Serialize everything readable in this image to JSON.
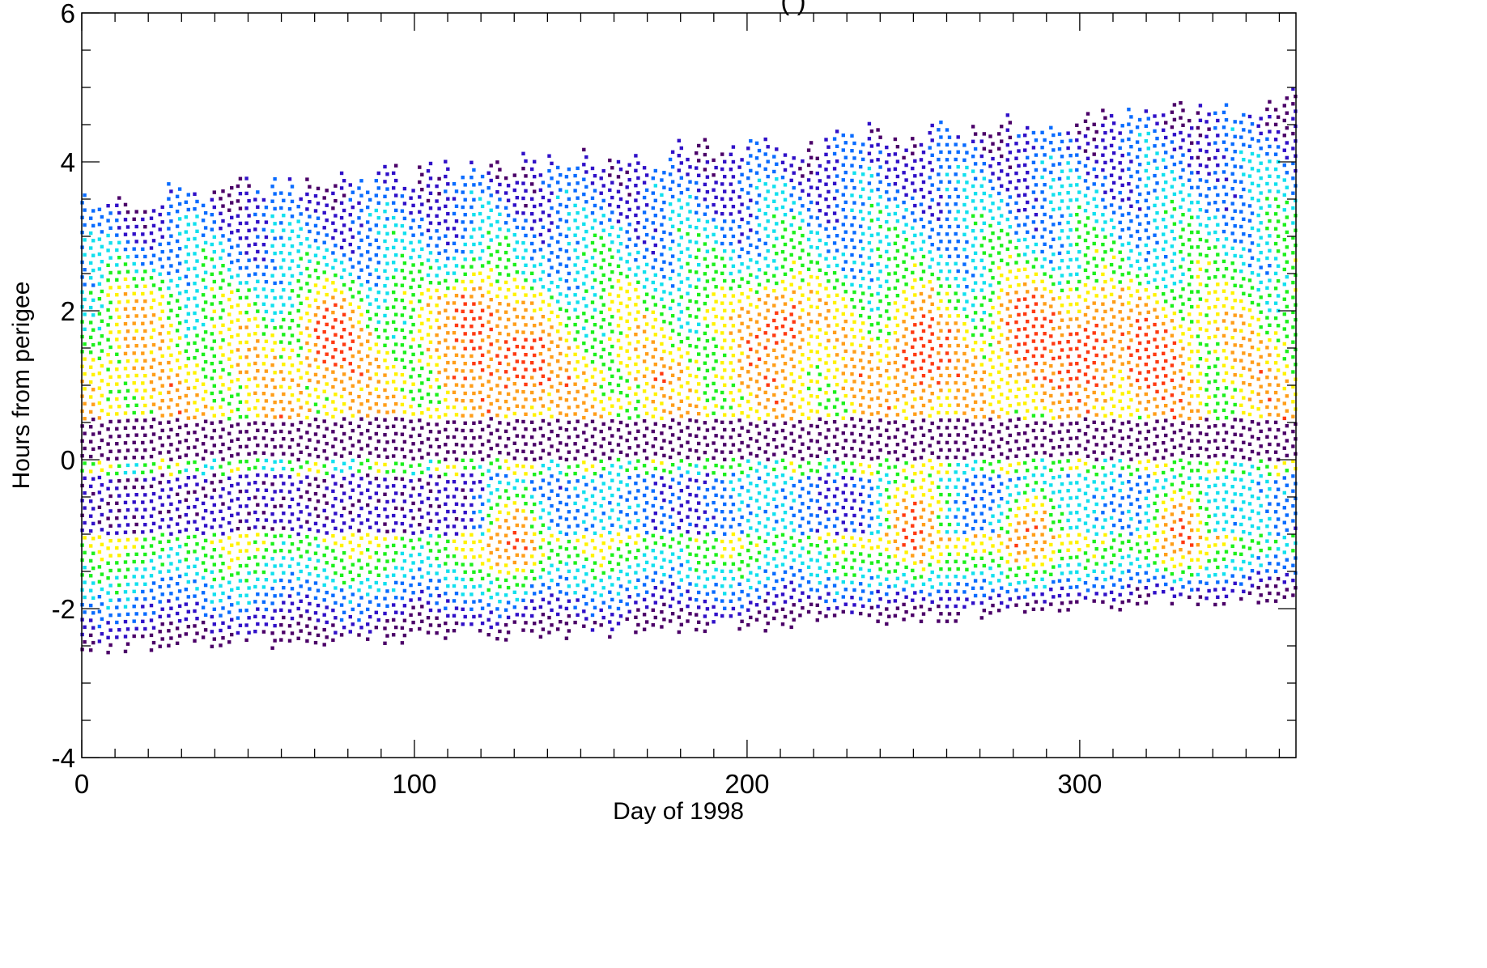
{
  "chart_data": {
    "type": "scatter",
    "title": "(             )",
    "xlabel": "Day of 1998",
    "ylabel": "Hours from perigee",
    "xlim": [
      0,
      365
    ],
    "ylim": [
      -4,
      6
    ],
    "x_ticks": [
      {
        "value": 0,
        "label": "0"
      },
      {
        "value": 100,
        "label": "100"
      },
      {
        "value": 200,
        "label": "200"
      },
      {
        "value": 300,
        "label": "300"
      }
    ],
    "y_ticks": [
      {
        "value": -4,
        "label": "-4"
      },
      {
        "value": -2,
        "label": "-2"
      },
      {
        "value": 0,
        "label": "0"
      },
      {
        "value": 2,
        "label": "2"
      },
      {
        "value": 4,
        "label": "4"
      },
      {
        "value": 6,
        "label": "6"
      }
    ],
    "x_minor_step": 10,
    "y_minor_step": 0.5,
    "grid": false,
    "colormap": [
      "#4b0068",
      "#3010c8",
      "#0a6cff",
      "#12e0ee",
      "#1cf01c",
      "#fff200",
      "#ff9e1a",
      "#ff3a12"
    ],
    "orbit_coverage": {
      "columns_every_days": 2.6,
      "samples_per_column_every_hours": 0.1,
      "top_edge": [
        {
          "day": 0,
          "hours": 3.5
        },
        {
          "day": 200,
          "hours": 4.2
        },
        {
          "day": 365,
          "hours": 4.85
        }
      ],
      "bottom_edge": [
        {
          "day": 0,
          "hours": -2.5
        },
        {
          "day": 200,
          "hours": -2.2
        },
        {
          "day": 365,
          "hours": -1.8
        }
      ]
    },
    "bands": [
      {
        "hours_from": 0.0,
        "hours_to": 0.55,
        "color": "#4b0068",
        "description": "perigee band"
      },
      {
        "hours_from": -1.0,
        "hours_to": -0.2,
        "color": "#3010c8",
        "days": [
          0,
          122
        ]
      },
      {
        "hours_from": -1.0,
        "hours_to": -0.2,
        "color": "#0a6cff",
        "days": [
          122,
          365
        ]
      }
    ],
    "hotspots": [
      {
        "day": 18,
        "hours": 1.8,
        "level": 0.8
      },
      {
        "day": 75,
        "hours": 1.6,
        "level": 0.95
      },
      {
        "day": 118,
        "hours": 1.9,
        "level": 0.97
      },
      {
        "day": 132,
        "hours": 1.3,
        "level": 0.98
      },
      {
        "day": 210,
        "hours": 1.8,
        "level": 0.95
      },
      {
        "day": 252,
        "hours": 1.4,
        "level": 0.98
      },
      {
        "day": 285,
        "hours": 1.7,
        "level": 0.99
      },
      {
        "day": 302,
        "hours": 1.5,
        "level": 0.99
      },
      {
        "day": 322,
        "hours": 1.4,
        "level": 0.97
      },
      {
        "day": 130,
        "hours": -1.0,
        "level": 0.9
      },
      {
        "day": 250,
        "hours": -0.9,
        "level": 0.95
      },
      {
        "day": 285,
        "hours": -1.0,
        "level": 0.9
      },
      {
        "day": 330,
        "hours": -0.9,
        "level": 0.92
      }
    ]
  }
}
